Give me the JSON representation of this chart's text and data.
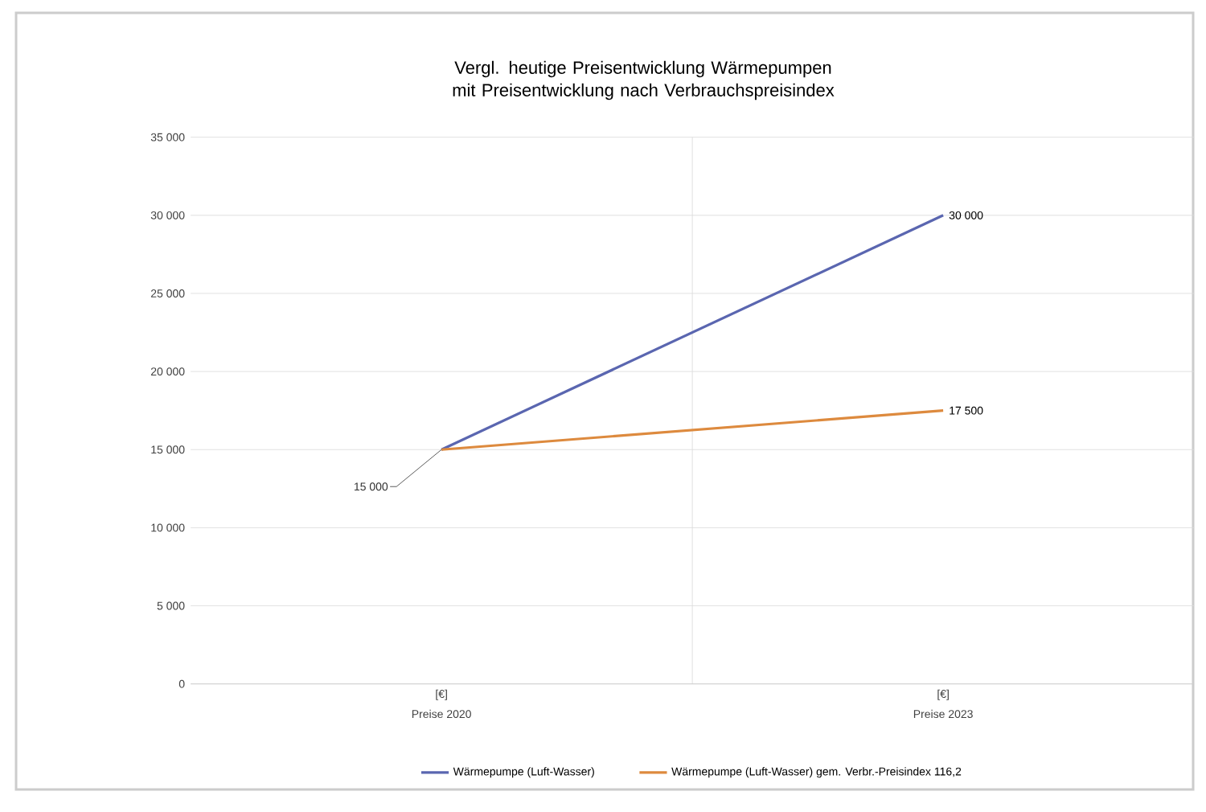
{
  "chart_data": {
    "type": "line",
    "title": "Vergl. heutige Preisentwicklung Wärmepumpen mit Preisentwicklung nach Verbrauchspreisindex",
    "categories": [
      "Preise 2020",
      "Preise 2023"
    ],
    "annotations": [
      "[€]",
      "[€]"
    ],
    "series": [
      {
        "name": "Wärmepumpe (Luft-Wasser)",
        "color": "#5a66b0",
        "values": [
          15000,
          30000
        ],
        "value_labels": [
          "15 000",
          "30 000"
        ]
      },
      {
        "name": "Wärmepumpe (Luft-Wasser) gem. Verbr.-Preisindex 116,2",
        "color": "#dd8a3e",
        "values": [
          15000,
          17500
        ],
        "value_labels": [
          null,
          "17 500"
        ]
      }
    ],
    "ylim": [
      0,
      35000
    ],
    "yticks": [
      {
        "value": 0,
        "label": "0"
      },
      {
        "value": 5000,
        "label": "5 000"
      },
      {
        "value": 10000,
        "label": "10 000"
      },
      {
        "value": 15000,
        "label": "15 000"
      },
      {
        "value": 20000,
        "label": "20 000"
      },
      {
        "value": 25000,
        "label": "25 000"
      },
      {
        "value": 30000,
        "label": "30 000"
      },
      {
        "value": 35000,
        "label": "35 000"
      }
    ],
    "grid": true,
    "legend": "bottom",
    "marker": "none",
    "line_style": "solid"
  }
}
